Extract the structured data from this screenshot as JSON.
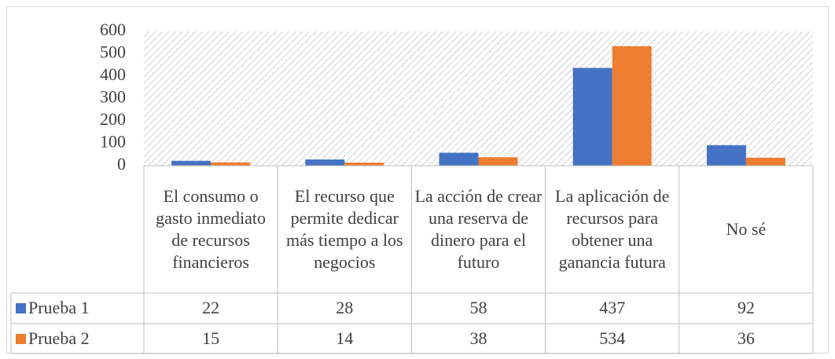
{
  "chart_data": {
    "type": "bar",
    "categories": [
      "El consumo o gasto inmediato de recursos financieros",
      "El recurso que permite dedicar más tiempo a los negocios",
      "La acción de crear una reserva de dinero para el futuro",
      "La aplicación de recursos para obtener una ganancia futura",
      "No sé"
    ],
    "series": [
      {
        "name": "Prueba 1",
        "color": "#4472c4",
        "values": [
          22,
          28,
          58,
          437,
          92
        ]
      },
      {
        "name": "Prueba 2",
        "color": "#ed7d31",
        "values": [
          15,
          14,
          38,
          534,
          36
        ]
      }
    ],
    "ylim": [
      0,
      600
    ],
    "yticks": [
      0,
      100,
      200,
      300,
      400,
      500,
      600
    ],
    "grid": false
  }
}
